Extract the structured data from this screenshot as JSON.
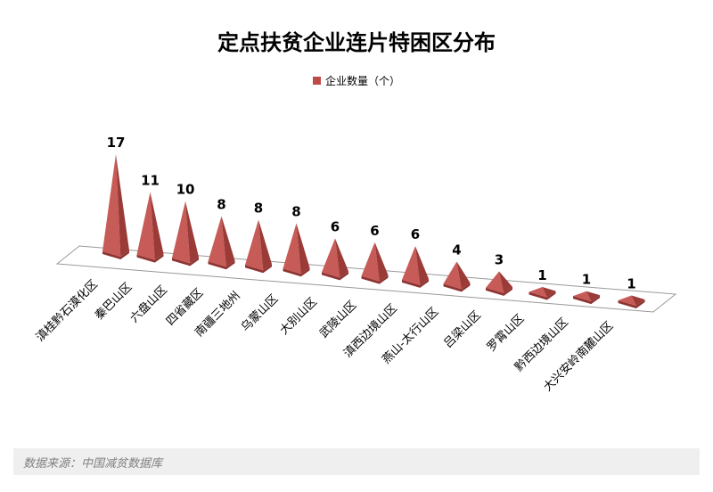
{
  "title": "定点扶贫企业连片特困区分布",
  "legend": {
    "label": "企业数量（个）",
    "swatch_color": "#BE4B48"
  },
  "footer": {
    "source_text": "数据来源：中国减贫数据库"
  },
  "chart_data": {
    "type": "bar",
    "subtype": "3d-pyramid",
    "title": "定点扶贫企业连片特困区分布",
    "series_name": "企业数量（个）",
    "categories": [
      "滇桂黔石漠化区",
      "秦巴山区",
      "六盘山区",
      "四省藏区",
      "南疆三地州",
      "乌蒙山区",
      "大别山区",
      "武陵山区",
      "滇西边境山区",
      "燕山-太行山区",
      "吕梁山区",
      "罗霄山区",
      "黔西边境山区",
      "大兴安岭南麓山区"
    ],
    "values": [
      17,
      11,
      10,
      8,
      8,
      8,
      6,
      6,
      6,
      4,
      3,
      1,
      1,
      1
    ],
    "xlabel": "",
    "ylabel": "",
    "grid": false,
    "legend_position": "top",
    "value_labels_shown": true,
    "colors": {
      "face_light": "#C75B57",
      "face_dark": "#9A3B38",
      "base_rim": "#8E3432",
      "floor_fill": "#FFFFFF",
      "floor_stroke": "#999999",
      "label_color": "#000000"
    }
  }
}
